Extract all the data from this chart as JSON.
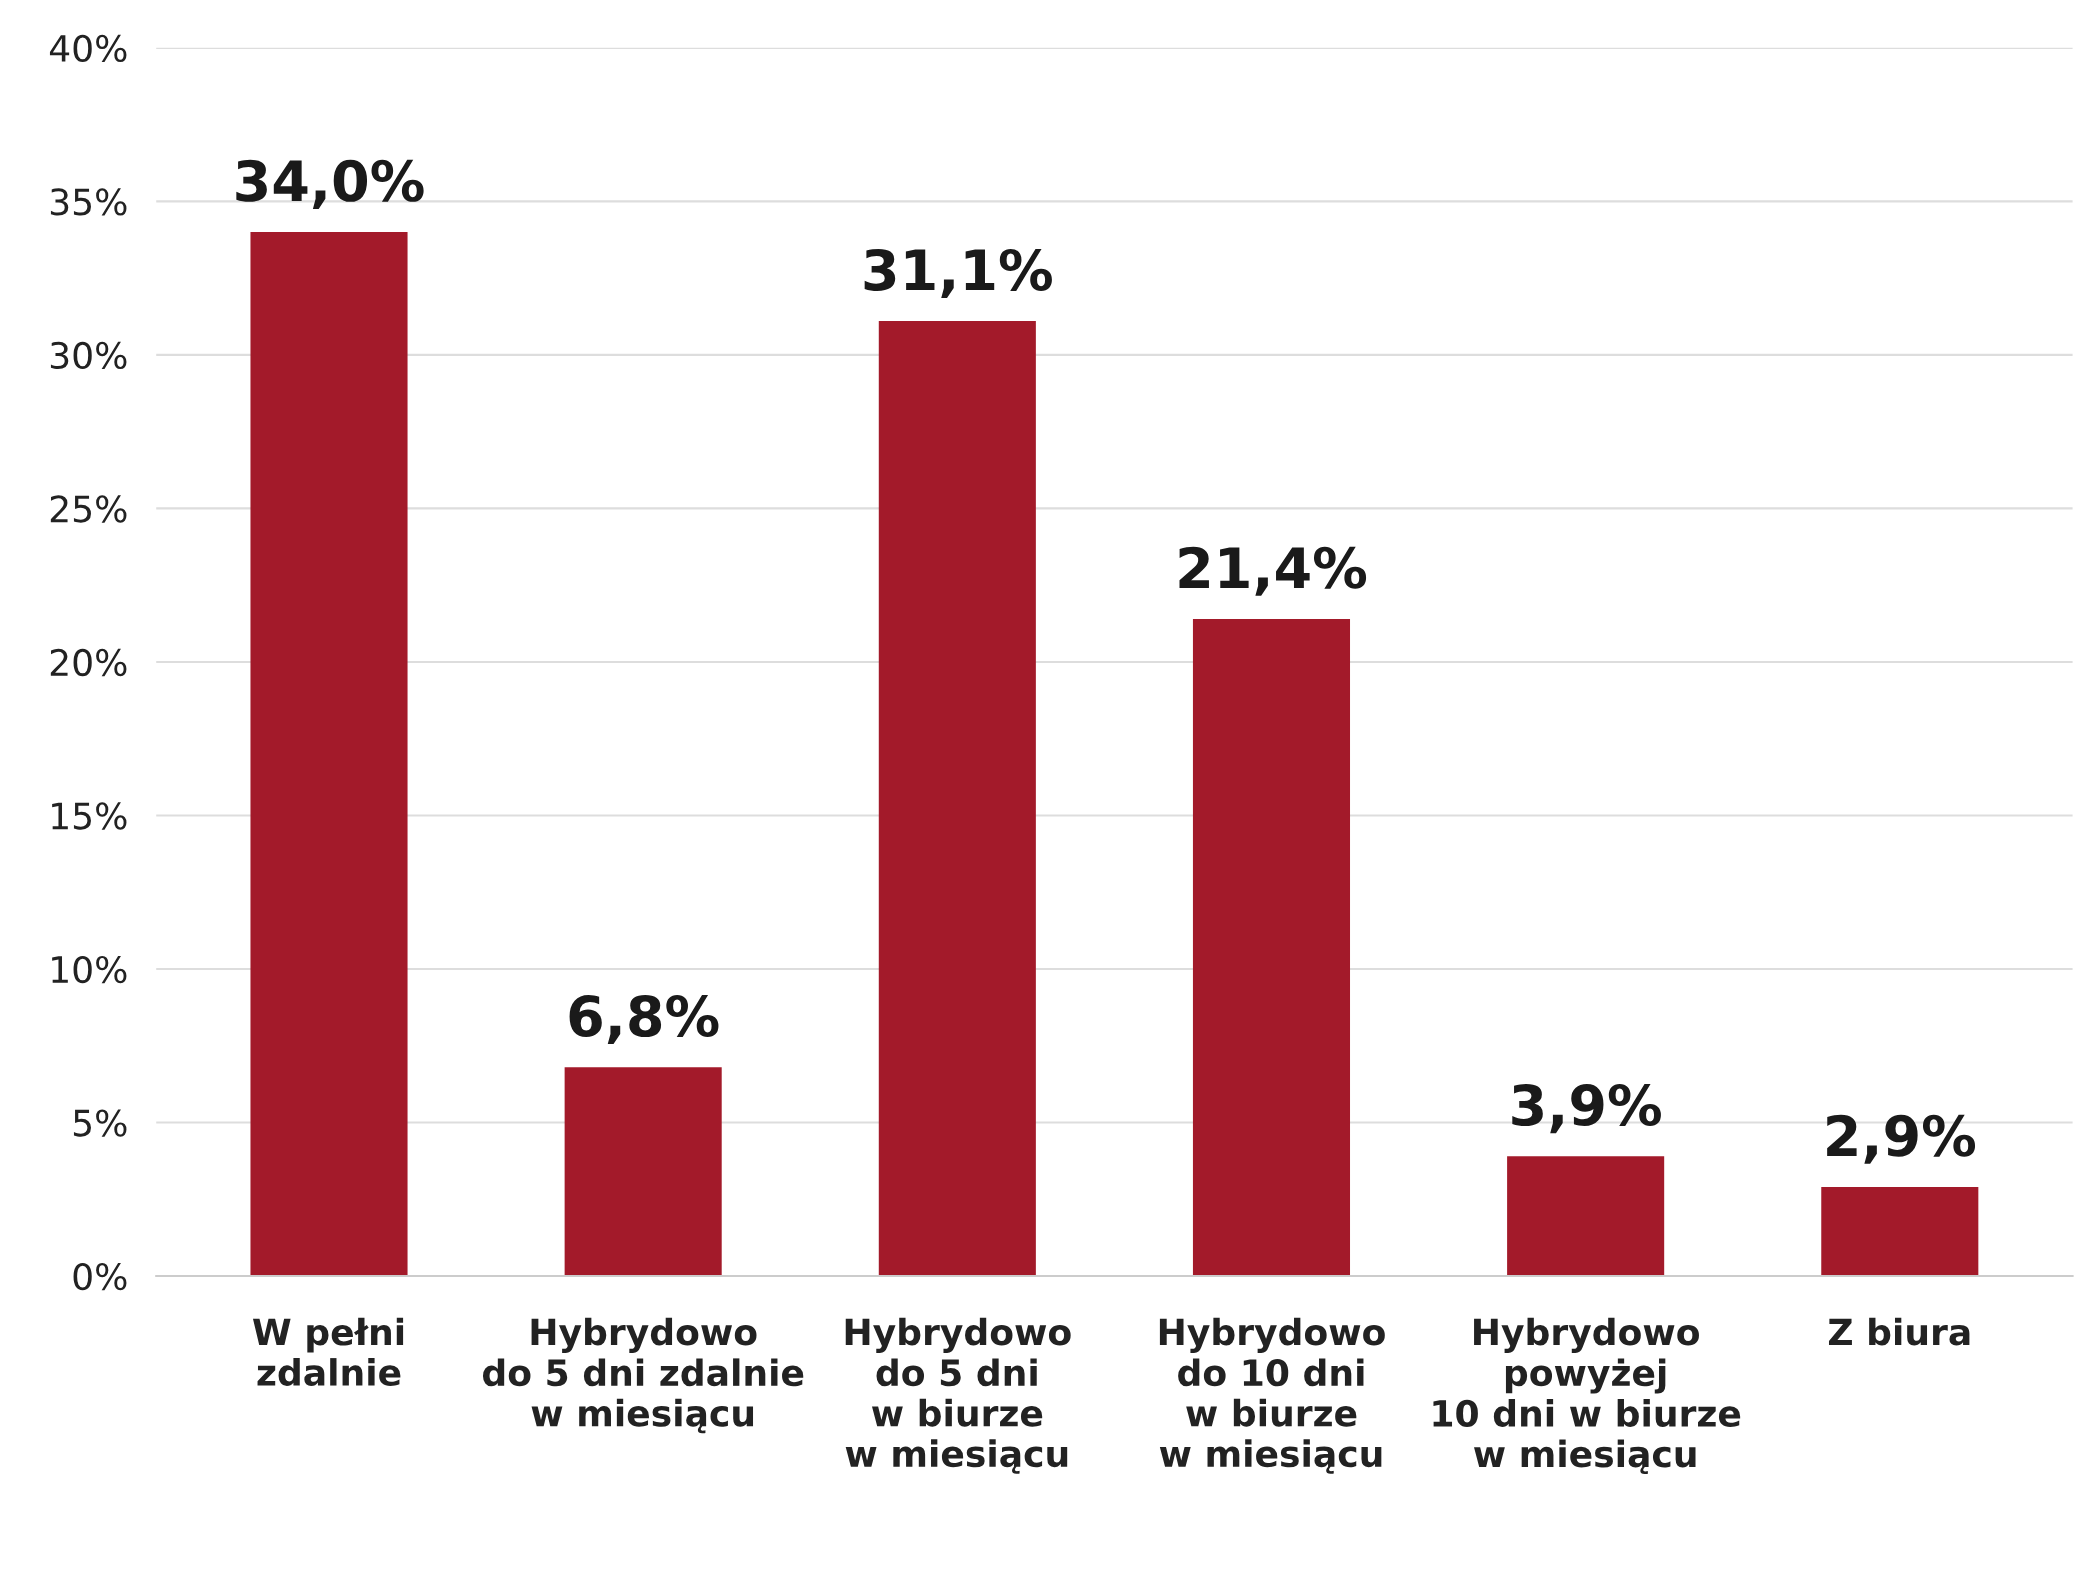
{
  "chart_data": {
    "type": "bar",
    "categories": [
      "W pełni\nzdalnie",
      "Hybrydowo\ndo 5 dni zdalnie\nw miesiącu",
      "Hybrydowo\ndo 5 dni\nw biurze\nw miesiącu",
      "Hybrydowo\ndo 10 dni\nw biurze\nw miesiącu",
      "Hybrydowo\npowyżej\n10 dni w biurze\nw miesiącu",
      "Z biura"
    ],
    "values": [
      34.0,
      6.8,
      31.1,
      21.4,
      3.9,
      2.9
    ],
    "value_labels": [
      "34,0%",
      "6,8%",
      "31,1%",
      "21,4%",
      "3,9%",
      "2,9%"
    ],
    "color": "#a31a2a",
    "ylim": [
      0,
      40
    ],
    "yticks": [
      {
        "value": 0,
        "label": "0%"
      },
      {
        "value": 5,
        "label": "5%"
      },
      {
        "value": 10,
        "label": "10%"
      },
      {
        "value": 15,
        "label": "15%"
      },
      {
        "value": 20,
        "label": "20%"
      },
      {
        "value": 25,
        "label": "25%"
      },
      {
        "value": 30,
        "label": "30%"
      },
      {
        "value": 35,
        "label": "35%"
      },
      {
        "value": 40,
        "label": "40%"
      }
    ],
    "grid": "y",
    "legend": false
  }
}
